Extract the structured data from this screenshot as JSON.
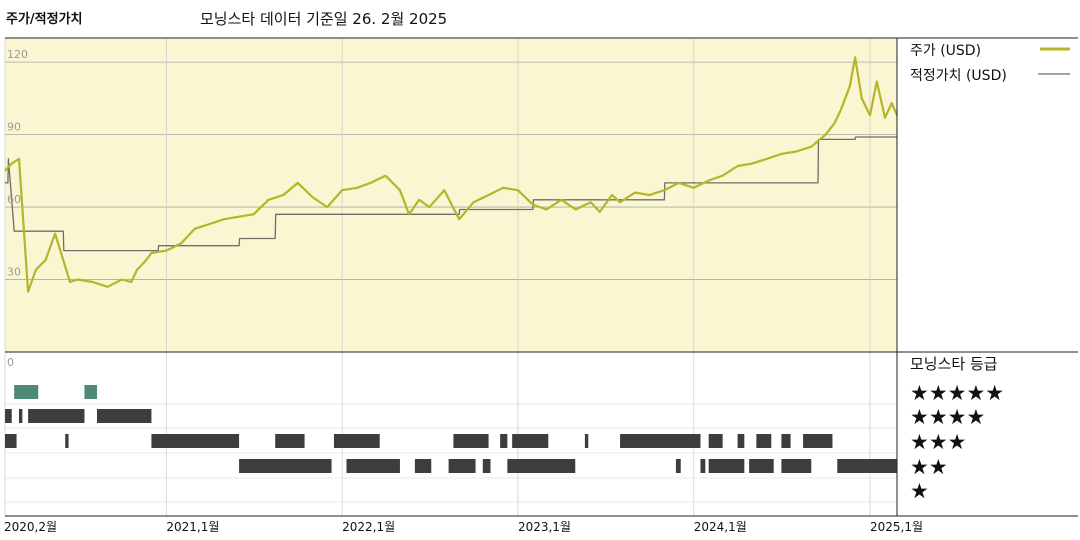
{
  "title": "주가/적정가치",
  "subtitle": "모닝스타 데이터 기준일 26. 2월 2025",
  "colors": {
    "price": "#b5b52a",
    "fair_value": "#6e6e6e",
    "plot_bg": "#faf6d2",
    "grid": "#cfcfcf",
    "five_star_bar": "#4f8a76",
    "rating_bar": "#3d3d3d"
  },
  "chart_data": [
    {
      "type": "line",
      "title": "주가/적정가치",
      "x_range": [
        "2020-02-01",
        "2025-02-26"
      ],
      "x_tick_labels": [
        "2020,2월",
        "2021,1월",
        "2022,1월",
        "2023,1월",
        "2024,1월",
        "2025,1월"
      ],
      "x_ticks": [
        "2020-02-01",
        "2021-01-01",
        "2022-01-01",
        "2023-01-01",
        "2024-01-01",
        "2025-01-01"
      ],
      "y_range": [
        0,
        130
      ],
      "y_ticks": [
        30,
        60,
        90,
        120
      ],
      "grid": true,
      "legend_position": "right",
      "series": [
        {
          "name": "주가 (USD)",
          "x": [
            "2020-02-01",
            "2020-02-15",
            "2020-03-01",
            "2020-03-20",
            "2020-04-05",
            "2020-04-25",
            "2020-05-15",
            "2020-06-01",
            "2020-06-15",
            "2020-07-01",
            "2020-08-01",
            "2020-09-01",
            "2020-10-01",
            "2020-10-20",
            "2020-11-01",
            "2020-11-20",
            "2020-12-01",
            "2021-01-01",
            "2021-02-01",
            "2021-03-01",
            "2021-04-01",
            "2021-05-01",
            "2021-06-01",
            "2021-07-01",
            "2021-08-01",
            "2021-09-01",
            "2021-10-01",
            "2021-11-01",
            "2021-12-01",
            "2022-01-01",
            "2022-02-01",
            "2022-03-01",
            "2022-04-01",
            "2022-05-01",
            "2022-05-20",
            "2022-06-10",
            "2022-07-01",
            "2022-08-01",
            "2022-09-01",
            "2022-10-01",
            "2022-11-01",
            "2022-12-01",
            "2023-01-01",
            "2023-02-01",
            "2023-03-01",
            "2023-04-01",
            "2023-05-01",
            "2023-06-01",
            "2023-06-20",
            "2023-07-15",
            "2023-08-01",
            "2023-09-01",
            "2023-10-01",
            "2023-11-01",
            "2023-12-01",
            "2024-01-01",
            "2024-02-01",
            "2024-03-01",
            "2024-04-01",
            "2024-05-01",
            "2024-06-01",
            "2024-07-01",
            "2024-08-01",
            "2024-09-01",
            "2024-10-01",
            "2024-10-20",
            "2024-11-01",
            "2024-11-20",
            "2024-12-01",
            "2024-12-15",
            "2025-01-01",
            "2025-01-15",
            "2025-02-01",
            "2025-02-15",
            "2025-02-26"
          ],
          "y": [
            75,
            78,
            80,
            25,
            34,
            38,
            49,
            38,
            29,
            30,
            29,
            27,
            30,
            29,
            34,
            38,
            41,
            42,
            45,
            51,
            53,
            55,
            56,
            57,
            63,
            65,
            70,
            64,
            60,
            67,
            68,
            70,
            73,
            67,
            57,
            63,
            60,
            67,
            55,
            62,
            65,
            68,
            67,
            61,
            59,
            63,
            59,
            62,
            58,
            65,
            62,
            66,
            65,
            67,
            70,
            68,
            71,
            73,
            77,
            78,
            80,
            82,
            83,
            85,
            90,
            95,
            100,
            110,
            122,
            105,
            98,
            112,
            97,
            103,
            98
          ]
        },
        {
          "name": "적정가치 (USD)",
          "x": [
            "2020-02-01",
            "2020-02-07",
            "2020-02-08",
            "2020-02-20",
            "2020-06-01",
            "2020-06-02",
            "2020-12-15",
            "2020-12-16",
            "2021-06-01",
            "2021-06-02",
            "2021-08-15",
            "2021-08-16",
            "2021-11-15",
            "2021-11-16",
            "2022-09-01",
            "2022-09-02",
            "2023-02-01",
            "2023-02-02",
            "2023-11-01",
            "2023-11-02",
            "2024-09-15",
            "2024-09-16",
            "2024-12-01",
            "2024-12-02",
            "2025-02-26"
          ],
          "y": [
            70,
            70,
            80,
            50,
            50,
            42,
            42,
            44,
            44,
            47,
            47,
            57,
            57,
            57,
            57,
            59,
            59,
            63,
            63,
            70,
            70,
            88,
            88,
            89,
            89
          ]
        }
      ]
    },
    {
      "type": "timeline",
      "title": "모닝스타 등급",
      "y_tick_labels": [
        "0"
      ],
      "rows": [
        {
          "label": "★★★★★",
          "stars": 5,
          "periods": [
            [
              "2020-02-20",
              "2020-04-10"
            ],
            [
              "2020-07-15",
              "2020-08-10"
            ]
          ]
        },
        {
          "label": "★★★★",
          "stars": 4,
          "periods": [
            [
              "2020-02-01",
              "2020-02-15"
            ],
            [
              "2020-03-01",
              "2020-03-08"
            ],
            [
              "2020-03-20",
              "2020-07-15"
            ],
            [
              "2020-08-10",
              "2020-12-01"
            ]
          ]
        },
        {
          "label": "★★★",
          "stars": 3,
          "periods": [
            [
              "2020-02-01",
              "2020-02-25"
            ],
            [
              "2020-06-05",
              "2020-06-12"
            ],
            [
              "2020-12-01",
              "2021-06-01"
            ],
            [
              "2021-08-15",
              "2021-10-15"
            ],
            [
              "2021-12-15",
              "2022-03-20"
            ],
            [
              "2022-08-20",
              "2022-11-01"
            ],
            [
              "2022-11-25",
              "2022-12-10"
            ],
            [
              "2022-12-20",
              "2023-03-05"
            ],
            [
              "2023-05-20",
              "2023-05-27"
            ],
            [
              "2023-08-01",
              "2024-01-15"
            ],
            [
              "2024-02-01",
              "2024-03-01"
            ],
            [
              "2024-04-01",
              "2024-04-15"
            ],
            [
              "2024-05-10",
              "2024-06-10"
            ],
            [
              "2024-07-01",
              "2024-07-20"
            ],
            [
              "2024-08-15",
              "2024-10-15"
            ]
          ]
        },
        {
          "label": "★★",
          "stars": 2,
          "periods": [
            [
              "2021-06-01",
              "2021-12-10"
            ],
            [
              "2022-01-10",
              "2022-05-01"
            ],
            [
              "2022-06-01",
              "2022-07-05"
            ],
            [
              "2022-08-10",
              "2022-10-05"
            ],
            [
              "2022-10-20",
              "2022-11-05"
            ],
            [
              "2022-12-10",
              "2023-04-30"
            ],
            [
              "2023-11-25",
              "2023-12-05"
            ],
            [
              "2024-01-15",
              "2024-01-25"
            ],
            [
              "2024-02-01",
              "2024-04-15"
            ],
            [
              "2024-04-25",
              "2024-06-15"
            ],
            [
              "2024-07-01",
              "2024-09-01"
            ],
            [
              "2024-10-25",
              "2025-02-26"
            ]
          ]
        },
        {
          "label": "★",
          "stars": 1,
          "periods": []
        }
      ]
    }
  ]
}
